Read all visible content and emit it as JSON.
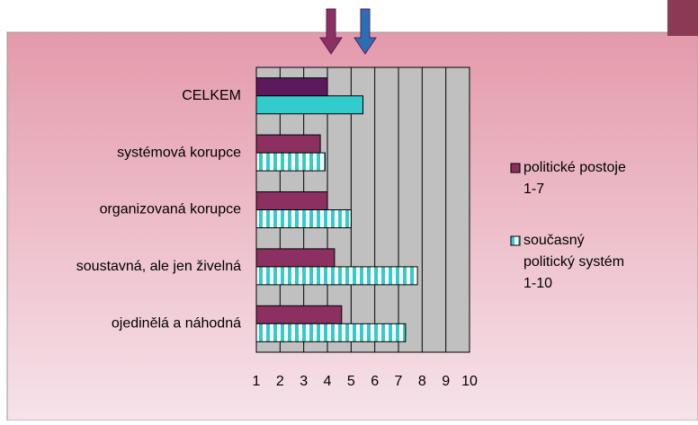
{
  "chart_data": {
    "type": "bar",
    "orientation": "horizontal",
    "categories": [
      "CELKEM",
      "systémová korupce",
      "organizovaná korupce",
      "soustavná, ale jen živelná",
      "ojedinělá a náhodná"
    ],
    "series": [
      {
        "name": "politické postoje 1-7",
        "color": "#8b3060",
        "colors": [
          "#5c1a5c",
          "#8b3060",
          "#8b3060",
          "#8b3060",
          "#8b3060"
        ],
        "values": [
          4.0,
          3.7,
          4.0,
          4.3,
          4.6
        ]
      },
      {
        "name": "současný politický systém 1-10",
        "color": "#33cccc",
        "pattern": "stripes",
        "values": [
          5.5,
          3.9,
          5.0,
          7.8,
          7.3
        ]
      }
    ],
    "xlim": [
      1,
      10
    ],
    "xticks": [
      1,
      2,
      3,
      4,
      5,
      6,
      7,
      8,
      9,
      10
    ],
    "grid": true,
    "legend": "right"
  }
}
